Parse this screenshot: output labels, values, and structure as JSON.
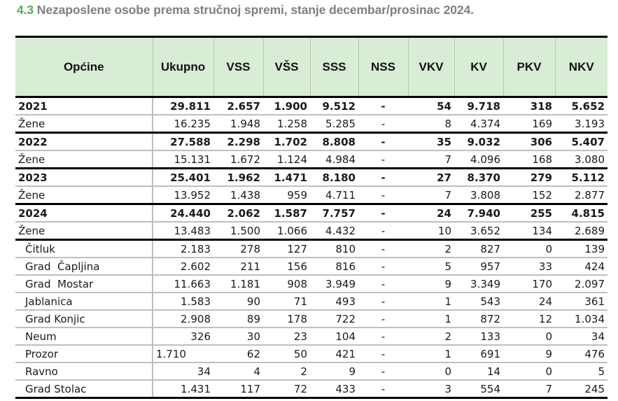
{
  "title": {
    "number": "4.3",
    "text": " Nezaposlene osobe prema stručnoj spremi, stanje decembar/prosinac 2024."
  },
  "table": {
    "headers": [
      "Općine",
      "Ukupno",
      "VSS",
      "VŠS",
      "SSS",
      "NSS",
      "VKV",
      "KV",
      "PKV",
      "NKV"
    ],
    "rows": [
      {
        "label": "2021",
        "type": "year",
        "values": [
          "29.811",
          "2.657",
          "1.900",
          "9.512",
          "-",
          "54",
          "9.718",
          "318",
          "5.652"
        ]
      },
      {
        "label": "Žene",
        "type": "women",
        "values": [
          "16.235",
          "1.948",
          "1.258",
          "5.285",
          "-",
          "8",
          "4.374",
          "169",
          "3.193"
        ]
      },
      {
        "label": "2022",
        "type": "year",
        "values": [
          "27.588",
          "2.298",
          "1.702",
          "8.808",
          "-",
          "35",
          "9.032",
          "306",
          "5.407"
        ]
      },
      {
        "label": "Žene",
        "type": "women",
        "values": [
          "15.131",
          "1.672",
          "1.124",
          "4.984",
          "-",
          "7",
          "4.096",
          "168",
          "3.080"
        ]
      },
      {
        "label": "2023",
        "type": "year",
        "values": [
          "25.401",
          "1.962",
          "1.471",
          "8.180",
          "-",
          "27",
          "8.370",
          "279",
          "5.112"
        ]
      },
      {
        "label": "Žene",
        "type": "women",
        "values": [
          "13.952",
          "1.438",
          "959",
          "4.711",
          "-",
          "7",
          "3.808",
          "152",
          "2.877"
        ]
      },
      {
        "label": "2024",
        "type": "year",
        "values": [
          "24.440",
          "2.062",
          "1.587",
          "7.757",
          "-",
          "24",
          "7.940",
          "255",
          "4.815"
        ]
      },
      {
        "label": "Žene",
        "type": "women",
        "values": [
          "13.483",
          "1.500",
          "1.066",
          "4.432",
          "-",
          "10",
          "3.652",
          "134",
          "2.689"
        ]
      },
      {
        "label": "Čitluk",
        "type": "muni",
        "values": [
          "2.183",
          "278",
          "127",
          "810",
          "-",
          "2",
          "827",
          "0",
          "139"
        ]
      },
      {
        "label": "Grad  Čapljina",
        "type": "muni",
        "values": [
          "2.602",
          "211",
          "156",
          "816",
          "-",
          "5",
          "957",
          "33",
          "424"
        ]
      },
      {
        "label": "Grad  Mostar",
        "type": "muni",
        "values": [
          "11.663",
          "1.181",
          "908",
          "3.949",
          "-",
          "9",
          "3.349",
          "170",
          "2.097"
        ]
      },
      {
        "label": "Jablanica",
        "type": "muni",
        "values": [
          "1.583",
          "90",
          "71",
          "493",
          "-",
          "1",
          "543",
          "24",
          "361"
        ]
      },
      {
        "label": "Grad Konjic",
        "type": "muni",
        "values": [
          "2.908",
          "89",
          "178",
          "722",
          "-",
          "1",
          "872",
          "12",
          "1.034"
        ]
      },
      {
        "label": "Neum",
        "type": "muni",
        "values": [
          "326",
          "30",
          "23",
          "104",
          "-",
          "2",
          "133",
          "0",
          "34"
        ]
      },
      {
        "label": "Prozor",
        "type": "muni",
        "values": [
          "1.710",
          "62",
          "50",
          "421",
          "-",
          "1",
          "691",
          "9",
          "476"
        ]
      },
      {
        "label": "Ravno",
        "type": "muni",
        "values": [
          "34",
          "4",
          "2",
          "9",
          "-",
          "0",
          "14",
          "0",
          "5"
        ]
      },
      {
        "label": "Grad Stolac",
        "type": "muni",
        "values": [
          "1.431",
          "117",
          "72",
          "433",
          "-",
          "3",
          "554",
          "7",
          "245"
        ]
      }
    ]
  },
  "colors": {
    "title_number": "#4caf50",
    "title_text": "#7f7f7f",
    "header_bg": "#d9ecd6"
  }
}
